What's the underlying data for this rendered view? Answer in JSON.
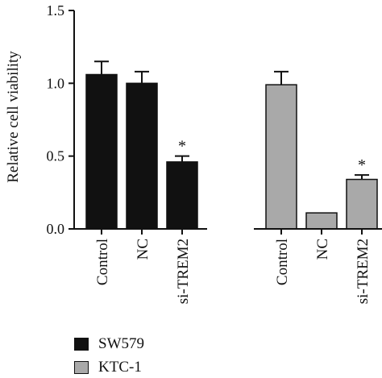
{
  "chart_data": {
    "type": "bar",
    "title": "",
    "xlabel": "",
    "ylabel": "Relative cell viability",
    "ylim": [
      0,
      1.5
    ],
    "yticks": [
      "0.0",
      "0.5",
      "1.0",
      "1.5"
    ],
    "groups": [
      {
        "name": "SW579",
        "color": "#111111",
        "categories": [
          "Control",
          "NC",
          "si-TREM2"
        ],
        "values": [
          1.06,
          1.0,
          0.46
        ],
        "errors": [
          0.09,
          0.08,
          0.04
        ],
        "significance": [
          "",
          "",
          "*"
        ]
      },
      {
        "name": "KTC-1",
        "color": "#a9a9a9",
        "categories": [
          "Control",
          "NC",
          "si-TREM2"
        ],
        "values": [
          0.99,
          0.11,
          0.34
        ],
        "errors": [
          0.09,
          0.005,
          0.03
        ],
        "significance": [
          "",
          "",
          "*"
        ]
      }
    ],
    "legend": [
      {
        "label": "SW579",
        "color": "#111111"
      },
      {
        "label": "KTC-1",
        "color": "#a9a9a9"
      }
    ],
    "legend_position": "bottom-left",
    "grid": false
  }
}
